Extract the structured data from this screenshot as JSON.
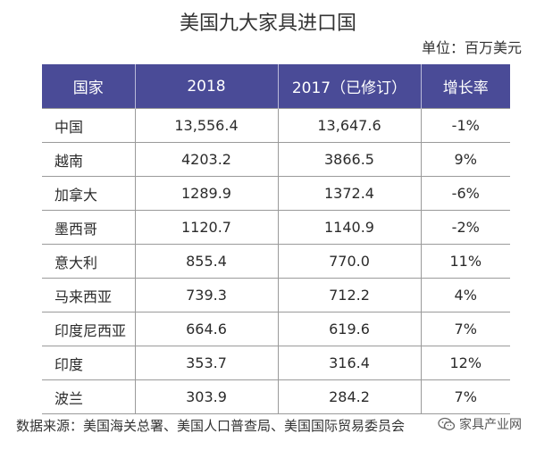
{
  "title": "美国九大家具进口国",
  "unit": "单位：百万美元",
  "table": {
    "headers": [
      "国家",
      "2018",
      "2017（已修订）",
      "增长率"
    ],
    "rows": [
      [
        "中国",
        "13,556.4",
        "13,647.6",
        "-1%"
      ],
      [
        "越南",
        "4203.2",
        "3866.5",
        "9%"
      ],
      [
        "加拿大",
        "1289.9",
        "1372.4",
        "-6%"
      ],
      [
        "墨西哥",
        "1120.7",
        "1140.9",
        "-2%"
      ],
      [
        "意大利",
        "855.4",
        "770.0",
        "11%"
      ],
      [
        "马来西亚",
        "739.3",
        "712.2",
        "4%"
      ],
      [
        "印度尼西亚",
        "664.6",
        "619.6",
        "7%"
      ],
      [
        "印度",
        "353.7",
        "316.4",
        "12%"
      ],
      [
        "波兰",
        "303.9",
        "284.2",
        "7%"
      ]
    ]
  },
  "source": "数据来源：美国海关总署、美国人口普查局、美国国际贸易委员会",
  "watermark": {
    "text": "家具产业网",
    "icon": "wechat-icon"
  },
  "colors": {
    "header_bg": "#4a4b97",
    "header_text": "#ffffff",
    "grid": "#9a9a9a"
  }
}
